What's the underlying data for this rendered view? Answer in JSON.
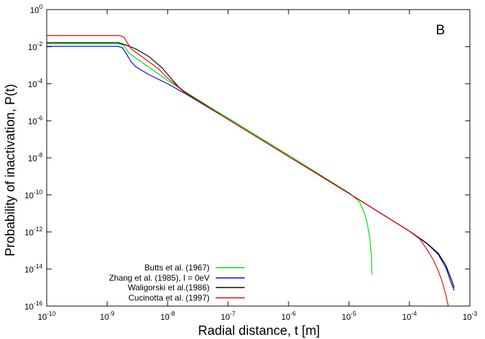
{
  "chart_data": {
    "type": "line",
    "panel_label": "B",
    "xlabel": "Radial distance, t [m]",
    "ylabel": "Probability of inactivation, P(t)",
    "x_scale": "log",
    "y_scale": "log",
    "xlim": [
      1e-10,
      0.001
    ],
    "ylim": [
      1e-16,
      1
    ],
    "x_ticks": [
      {
        "mantissa": "10",
        "exp": "-10",
        "value": 1e-10
      },
      {
        "mantissa": "10",
        "exp": "-9",
        "value": 1e-09
      },
      {
        "mantissa": "10",
        "exp": "-8",
        "value": 1e-08
      },
      {
        "mantissa": "10",
        "exp": "-7",
        "value": 1e-07
      },
      {
        "mantissa": "10",
        "exp": "-6",
        "value": 1e-06
      },
      {
        "mantissa": "10",
        "exp": "-5",
        "value": 1e-05
      },
      {
        "mantissa": "10",
        "exp": "-4",
        "value": 0.0001
      },
      {
        "mantissa": "10",
        "exp": "-3",
        "value": 0.001
      }
    ],
    "y_ticks": [
      {
        "mantissa": "10",
        "exp": "-16",
        "value": 1e-16
      },
      {
        "mantissa": "10",
        "exp": "-14",
        "value": 1e-14
      },
      {
        "mantissa": "10",
        "exp": "-12",
        "value": 1e-12
      },
      {
        "mantissa": "10",
        "exp": "-10",
        "value": 1e-10
      },
      {
        "mantissa": "10",
        "exp": "-8",
        "value": 1e-08
      },
      {
        "mantissa": "10",
        "exp": "-6",
        "value": 1e-06
      },
      {
        "mantissa": "10",
        "exp": "-4",
        "value": 0.0001
      },
      {
        "mantissa": "10",
        "exp": "-2",
        "value": 0.01
      },
      {
        "mantissa": "10",
        "exp": "0",
        "value": 1
      }
    ],
    "legend_position": "bottom-left",
    "series": [
      {
        "name": "Butts et al. (1967)",
        "color": "#00dd00",
        "points": [
          [
            1e-10,
            0.0145
          ],
          [
            1.5e-09,
            0.0145
          ],
          [
            1.8e-09,
            0.013
          ],
          [
            2e-09,
            0.009
          ],
          [
            2.3e-09,
            0.0045
          ],
          [
            3e-09,
            0.0024
          ],
          [
            5e-09,
            0.00075
          ],
          [
            1e-08,
            0.00015
          ],
          [
            2e-08,
            3.5e-05
          ],
          [
            5e-08,
            5.5e-06
          ],
          [
            1e-07,
            1.4e-06
          ],
          [
            1e-06,
            1.4e-08
          ],
          [
            1e-05,
            1.3e-10
          ],
          [
            1.2e-05,
            8e-11
          ],
          [
            1.5e-05,
            4e-11
          ],
          [
            1.8e-05,
            1e-11
          ],
          [
            2e-05,
            3e-12
          ],
          [
            2.2e-05,
            5e-13
          ],
          [
            2.35e-05,
            5e-14
          ],
          [
            2.4e-05,
            5e-15
          ]
        ]
      },
      {
        "name": "Zhang et al. (1985), I = 0eV",
        "color": "#0000ee",
        "points": [
          [
            1e-10,
            0.0105
          ],
          [
            1.5e-09,
            0.0105
          ],
          [
            1.8e-09,
            0.0085
          ],
          [
            2e-09,
            0.005
          ],
          [
            2.5e-09,
            0.0015
          ],
          [
            3e-09,
            0.0008
          ],
          [
            5e-09,
            0.0003
          ],
          [
            1e-08,
            0.0001
          ],
          [
            2e-08,
            2.8e-05
          ],
          [
            1e-07,
            1.2e-06
          ],
          [
            1e-06,
            1.2e-08
          ],
          [
            1e-05,
            1.2e-10
          ],
          [
            0.0001,
            1.1e-12
          ],
          [
            0.0002,
            2.2e-13
          ],
          [
            0.0003,
            6e-14
          ],
          [
            0.0004,
            1.2e-14
          ],
          [
            0.0005,
            1.5e-15
          ],
          [
            0.00055,
            7e-16
          ]
        ]
      },
      {
        "name": "Waligorski et al.(1986)",
        "color": "#000000",
        "points": [
          [
            1e-10,
            0.0165
          ],
          [
            1.5e-09,
            0.0165
          ],
          [
            2e-09,
            0.0125
          ],
          [
            3e-09,
            0.0075
          ],
          [
            5e-09,
            0.0028
          ],
          [
            8e-09,
            0.00075
          ],
          [
            1.2e-08,
            0.00016
          ],
          [
            1.5e-08,
            7e-05
          ],
          [
            2e-08,
            3.2e-05
          ],
          [
            1e-07,
            1.2e-06
          ],
          [
            1e-06,
            1.2e-08
          ],
          [
            1e-05,
            1.2e-10
          ],
          [
            0.0001,
            1.1e-12
          ],
          [
            0.0002,
            2.3e-13
          ],
          [
            0.0003,
            7e-14
          ],
          [
            0.0004,
            1.6e-14
          ],
          [
            0.0005,
            2.5e-15
          ],
          [
            0.00055,
            1e-15
          ]
        ]
      },
      {
        "name": "Cucinotta et al. (1997)",
        "color": "#ee0000",
        "points": [
          [
            1e-10,
            0.04
          ],
          [
            1.6e-09,
            0.04
          ],
          [
            1.9e-09,
            0.033
          ],
          [
            2.1e-09,
            0.018
          ],
          [
            2.5e-09,
            0.0075
          ],
          [
            4e-09,
            0.0025
          ],
          [
            7e-09,
            0.00065
          ],
          [
            1e-08,
            0.0002
          ],
          [
            2e-08,
            3e-05
          ],
          [
            1e-07,
            1.2e-06
          ],
          [
            1e-06,
            1.2e-08
          ],
          [
            1e-05,
            1.2e-10
          ],
          [
            0.0001,
            1.1e-12
          ],
          [
            0.00015,
            4e-13
          ],
          [
            0.0002,
            1e-13
          ],
          [
            0.00025,
            3e-14
          ],
          [
            0.0003,
            8e-15
          ],
          [
            0.00035,
            2e-15
          ],
          [
            0.0004,
            4e-16
          ],
          [
            0.00044,
            1e-16
          ]
        ]
      }
    ]
  }
}
